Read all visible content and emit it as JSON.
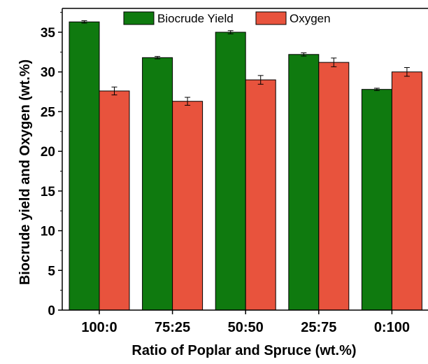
{
  "chart_data": {
    "type": "bar",
    "xlabel": "Ratio of Poplar and Spruce (wt.%)",
    "ylabel": "Biocrude yield and Oxygen (wt.%)",
    "categories": [
      "100:0",
      "75:25",
      "50:50",
      "25:75",
      "0:100"
    ],
    "ylim": [
      0,
      38
    ],
    "yticks": [
      0,
      5,
      10,
      15,
      20,
      25,
      30,
      35
    ],
    "grid": false,
    "legend_position": "top",
    "series": [
      {
        "name": "Biocrude Yield",
        "color": "#0f7a0f",
        "values": [
          36.3,
          31.8,
          35.0,
          32.2,
          27.8
        ],
        "errors": [
          0.15,
          0.15,
          0.2,
          0.2,
          0.15
        ]
      },
      {
        "name": "Oxygen",
        "color": "#e8533d",
        "values": [
          27.6,
          26.3,
          29.0,
          31.2,
          30.0
        ],
        "errors": [
          0.5,
          0.5,
          0.55,
          0.55,
          0.55
        ]
      }
    ]
  }
}
